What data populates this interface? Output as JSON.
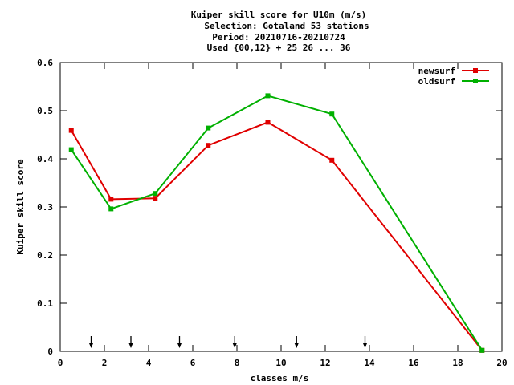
{
  "chart_data": {
    "type": "line",
    "title_lines": [
      "Kuiper skill score  for U10m (m/s)",
      "Selection: Gotaland     53 stations",
      "Period: 20210716-20210724",
      "Used {00,12} + 25 26 ... 36"
    ],
    "xlabel": "classes m/s",
    "ylabel": "Kuiper skill score",
    "xlim": [
      0,
      20
    ],
    "ylim": [
      0,
      0.6
    ],
    "xticks": [
      "0",
      "2",
      "4",
      "6",
      "8",
      "10",
      "12",
      "14",
      "16",
      "18",
      "20"
    ],
    "yticks": [
      "0",
      "0.1",
      "0.2",
      "0.3",
      "0.4",
      "0.5",
      "0.6"
    ],
    "grid": false,
    "legend_position": "top-right",
    "class_markers_x": [
      1.4,
      3.2,
      5.4,
      7.9,
      10.7,
      13.8
    ],
    "series": [
      {
        "name": "newsurf",
        "color": "#e00000",
        "x": [
          0.5,
          2.3,
          4.3,
          6.7,
          9.4,
          12.3,
          19.1
        ],
        "y": [
          0.459,
          0.316,
          0.318,
          0.428,
          0.476,
          0.397,
          0.002
        ]
      },
      {
        "name": "oldsurf",
        "color": "#00b000",
        "x": [
          0.5,
          2.3,
          4.3,
          6.7,
          9.4,
          12.3,
          19.1
        ],
        "y": [
          0.419,
          0.296,
          0.328,
          0.464,
          0.531,
          0.493,
          0.002
        ]
      }
    ]
  }
}
